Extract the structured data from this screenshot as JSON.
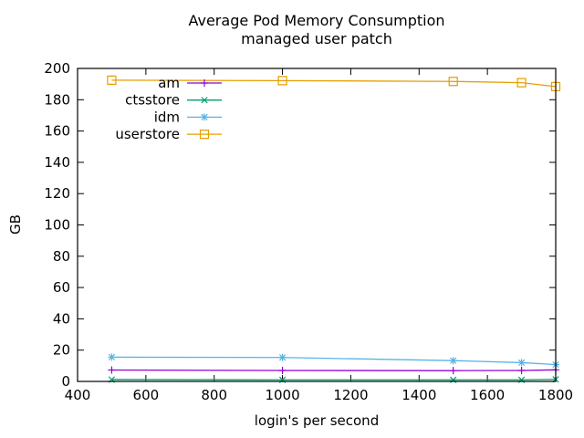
{
  "title": "Average Pod Memory Consumption",
  "subtitle": "managed user patch",
  "chart_data": {
    "type": "line",
    "x": [
      500,
      1000,
      1500,
      1700,
      1800
    ],
    "series": [
      {
        "name": "am",
        "color": "#9400d3",
        "marker": "plus",
        "values": [
          7.3,
          7.0,
          6.9,
          7.0,
          7.4
        ]
      },
      {
        "name": "ctsstore",
        "color": "#009e73",
        "marker": "cross",
        "values": [
          1.2,
          1.0,
          1.0,
          1.0,
          1.3
        ]
      },
      {
        "name": "idm",
        "color": "#56b4e9",
        "marker": "asterisk",
        "values": [
          15.5,
          15.3,
          13.3,
          12.0,
          10.8
        ]
      },
      {
        "name": "userstore",
        "color": "#e69f00",
        "marker": "square",
        "values": [
          192.5,
          192.2,
          191.7,
          190.9,
          188.4
        ]
      }
    ],
    "xlabel": "login's per second",
    "ylabel": "GB",
    "xlim": [
      400,
      1800
    ],
    "ylim": [
      0,
      200
    ],
    "xticks": [
      400,
      600,
      800,
      1000,
      1200,
      1400,
      1600,
      1800
    ],
    "yticks": [
      0,
      20,
      40,
      60,
      80,
      100,
      120,
      140,
      160,
      180,
      200
    ],
    "grid": false,
    "legend_position": "top-left"
  },
  "colors": {
    "background": "#ffffff",
    "axis": "#000000",
    "text": "#000000"
  }
}
